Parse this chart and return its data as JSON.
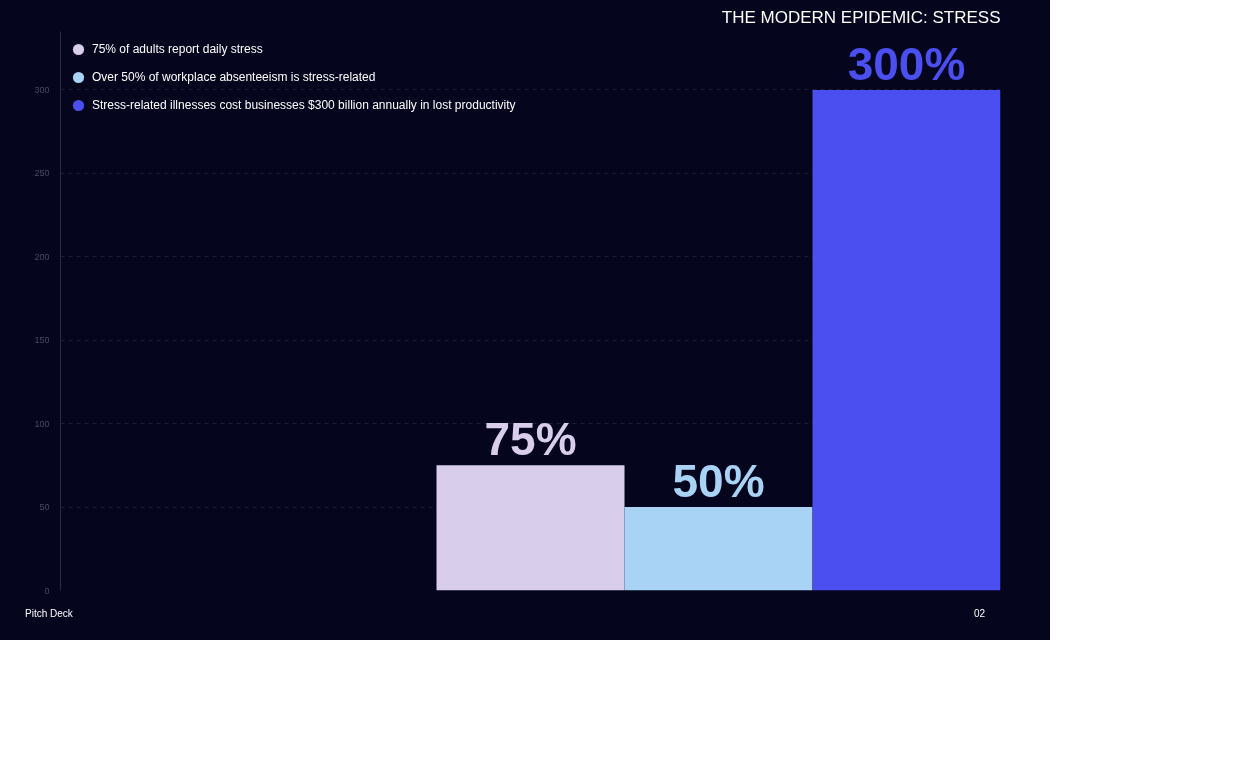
{
  "chart_data": {
    "type": "bar",
    "title": "THE MODERN EPIDEMIC: STRESS",
    "categories": [
      null,
      null,
      null,
      null,
      null
    ],
    "series": [
      {
        "name": "75% of adults report daily stress",
        "color": "#d8cdea",
        "values": [
          null,
          null,
          75,
          null,
          null
        ],
        "value_labels": [
          null,
          null,
          "75%",
          null,
          null
        ]
      },
      {
        "name": "Over 50% of workplace absenteeism is stress-related",
        "color": "#a9d3f5",
        "values": [
          null,
          null,
          null,
          50,
          null
        ],
        "value_labels": [
          null,
          null,
          null,
          "50%",
          null
        ]
      },
      {
        "name": "Stress-related illnesses cost businesses $300 billion annually in lost productivity",
        "color": "#4b4ff0",
        "values": [
          null,
          null,
          null,
          null,
          300
        ],
        "value_labels": [
          null,
          null,
          null,
          null,
          "300%"
        ]
      }
    ],
    "ylim": [
      0,
      335
    ],
    "yticks": [
      0,
      50,
      100,
      150,
      200,
      250,
      300
    ],
    "grid": "y",
    "legend": "top left",
    "annotations": [
      "Pitch Deck",
      "02"
    ]
  }
}
